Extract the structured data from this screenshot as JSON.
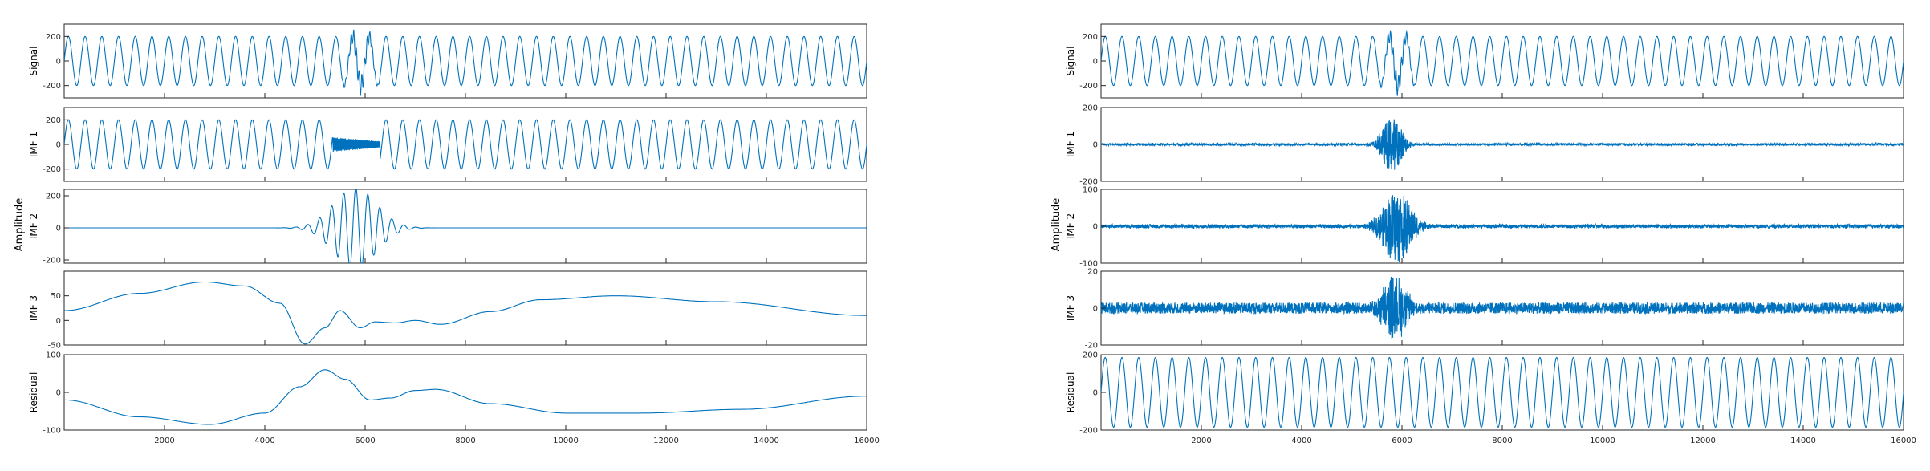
{
  "colors": {
    "trace": "#0072bd",
    "axes": "#262626",
    "background": "#ffffff"
  },
  "chart_data": [
    {
      "type": "line",
      "title": "",
      "shared_ylabel": "Amplitude",
      "xlabel": "",
      "xlim": [
        0,
        16000
      ],
      "xticks": [
        2000,
        4000,
        6000,
        8000,
        10000,
        12000,
        14000,
        16000
      ],
      "xtick_labels": [
        "2000",
        "4000",
        "6000",
        "8000",
        "10000",
        "12000",
        "14000",
        "16000"
      ],
      "grid": false,
      "subplots": [
        {
          "ylabel": "Signal",
          "ylim": [
            -300,
            300
          ],
          "yticks": [
            -200,
            0,
            200
          ],
          "ytick_labels": [
            "-200",
            "0",
            "200"
          ],
          "description_model": "sine",
          "waveform": {
            "kind": "sine",
            "cycles": 48,
            "amplitude": 200,
            "burst_center": 5900,
            "burst_width": 250,
            "burst_amplitude": 80
          }
        },
        {
          "ylabel": "IMF 1",
          "ylim": [
            -300,
            300
          ],
          "yticks": [
            -200,
            0,
            200
          ],
          "ytick_labels": [
            "-200",
            "0",
            "200"
          ],
          "waveform": {
            "kind": "sine_with_gap",
            "cycles": 48,
            "amplitude": 200,
            "gap_start": 5350,
            "gap_end": 6300,
            "gap_amplitude": 60
          }
        },
        {
          "ylabel": "IMF 2",
          "ylim": [
            -220,
            240
          ],
          "yticks": [
            -200,
            0,
            200
          ],
          "ytick_labels": [
            "-200",
            "0",
            "200"
          ],
          "waveform": {
            "kind": "wave_packet",
            "center": 5800,
            "width": 600,
            "cycles_in_packet": 5,
            "amplitude": 250
          }
        },
        {
          "ylabel": "IMF 3",
          "ylim": [
            -50,
            100
          ],
          "yticks": [
            -50,
            0,
            50
          ],
          "ytick_labels": [
            "-50",
            "0",
            "50"
          ],
          "points_x": [
            0,
            1500,
            2800,
            3600,
            4300,
            4800,
            5200,
            5500,
            5900,
            6200,
            6600,
            7000,
            7500,
            8500,
            9500,
            11000,
            13000,
            16000
          ],
          "points_y": [
            20,
            55,
            78,
            70,
            35,
            -48,
            -15,
            20,
            -15,
            -3,
            -5,
            0,
            -8,
            18,
            42,
            50,
            38,
            10
          ]
        },
        {
          "ylabel": "Residual",
          "ylim": [
            -100,
            100
          ],
          "yticks": [
            -100,
            0,
            100
          ],
          "ytick_labels": [
            "-100",
            "0",
            "100"
          ],
          "points_x": [
            0,
            1500,
            2900,
            4000,
            4700,
            5200,
            5600,
            6100,
            6500,
            7000,
            7400,
            8500,
            10000,
            11500,
            13500,
            16000
          ],
          "points_y": [
            -20,
            -65,
            -85,
            -55,
            15,
            60,
            35,
            -20,
            -15,
            5,
            8,
            -30,
            -55,
            -55,
            -45,
            -10
          ]
        }
      ]
    },
    {
      "type": "line",
      "title": "",
      "shared_ylabel": "Amplitude",
      "xlabel": "",
      "xlim": [
        0,
        16000
      ],
      "xticks": [
        2000,
        4000,
        6000,
        8000,
        10000,
        12000,
        14000,
        16000
      ],
      "xtick_labels": [
        "2000",
        "4000",
        "6000",
        "8000",
        "10000",
        "12000",
        "14000",
        "16000"
      ],
      "grid": false,
      "subplots": [
        {
          "ylabel": "Signal",
          "ylim": [
            -300,
            300
          ],
          "yticks": [
            -200,
            0,
            200
          ],
          "ytick_labels": [
            "-200",
            "0",
            "200"
          ],
          "waveform": {
            "kind": "sine",
            "cycles": 48,
            "amplitude": 200,
            "burst_center": 5900,
            "burst_width": 250,
            "burst_amplitude": 80
          }
        },
        {
          "ylabel": "IMF 1",
          "ylim": [
            -200,
            200
          ],
          "yticks": [
            -200,
            0,
            200
          ],
          "ytick_labels": [
            "-200",
            "0",
            "200"
          ],
          "waveform": {
            "kind": "noise_burst",
            "noise": 6,
            "burst_center": 5800,
            "burst_width": 250,
            "burst_amplitude": 150
          }
        },
        {
          "ylabel": "IMF 2",
          "ylim": [
            -100,
            100
          ],
          "yticks": [
            -100,
            0,
            100
          ],
          "ytick_labels": [
            "-100",
            "0",
            "100"
          ],
          "waveform": {
            "kind": "noise_burst",
            "noise": 5,
            "burst_center": 5900,
            "burst_width": 350,
            "burst_amplitude": 100
          }
        },
        {
          "ylabel": "IMF 3",
          "ylim": [
            -20,
            20
          ],
          "yticks": [
            -20,
            0,
            20
          ],
          "ytick_labels": [
            "-20",
            "0",
            "20"
          ],
          "waveform": {
            "kind": "noise_burst",
            "noise": 3,
            "burst_center": 5850,
            "burst_width": 300,
            "burst_amplitude": 17
          }
        },
        {
          "ylabel": "Residual",
          "ylim": [
            -200,
            200
          ],
          "yticks": [
            -200,
            0,
            200
          ],
          "ytick_labels": [
            "-200",
            "0",
            "200"
          ],
          "waveform": {
            "kind": "sine",
            "cycles": 48,
            "amplitude": 185
          }
        }
      ]
    }
  ]
}
